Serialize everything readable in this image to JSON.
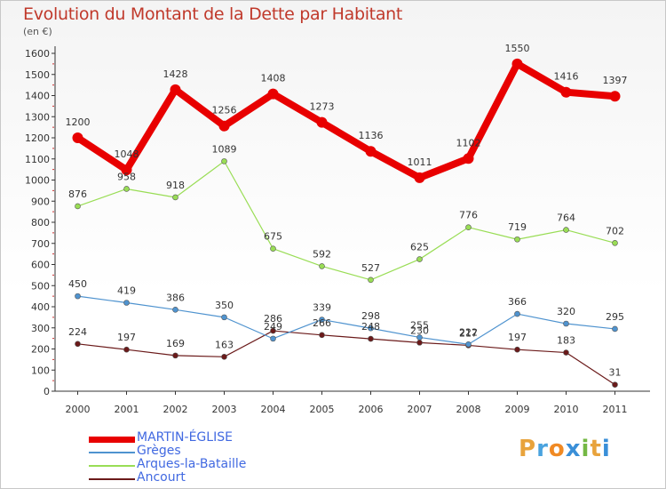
{
  "chart_data": {
    "type": "line",
    "title": "Evolution du Montant de la Dette par Habitant",
    "unit": "(en €)",
    "x": [
      "2000",
      "2001",
      "2002",
      "2003",
      "2004",
      "2005",
      "2006",
      "2007",
      "2008",
      "2009",
      "2010",
      "2011"
    ],
    "ylim": [
      0,
      1600
    ],
    "yticks": [
      0,
      100,
      200,
      300,
      400,
      500,
      600,
      700,
      800,
      900,
      1000,
      1100,
      1200,
      1300,
      1400,
      1500,
      1600
    ],
    "grid": false,
    "legend_position": "bottom-left",
    "series": [
      {
        "name": "MARTIN-ÉGLISE",
        "color": "#e80000",
        "values": [
          1200,
          1048,
          1428,
          1256,
          1408,
          1273,
          1136,
          1011,
          1102,
          1550,
          1416,
          1397
        ]
      },
      {
        "name": "Grèges",
        "color": "#4f93cf",
        "values": [
          450,
          419,
          386,
          350,
          249,
          339,
          298,
          255,
          222,
          366,
          320,
          295
        ]
      },
      {
        "name": "Arques-la-Bataille",
        "color": "#99dd55",
        "values": [
          876,
          958,
          918,
          1089,
          675,
          592,
          527,
          625,
          776,
          719,
          764,
          702
        ]
      },
      {
        "name": "Ancourt",
        "color": "#6b1a1a",
        "values": [
          224,
          197,
          169,
          163,
          286,
          266,
          248,
          230,
          217,
          197,
          183,
          31
        ]
      }
    ]
  },
  "logo": {
    "letters": [
      "P",
      "r",
      "o",
      "x",
      "i",
      "t",
      "i"
    ],
    "colors": [
      "#e8a33c",
      "#4aa3df",
      "#f08a24",
      "#3a8fd8",
      "#74b844",
      "#e8a33c",
      "#3a8fd8"
    ]
  }
}
